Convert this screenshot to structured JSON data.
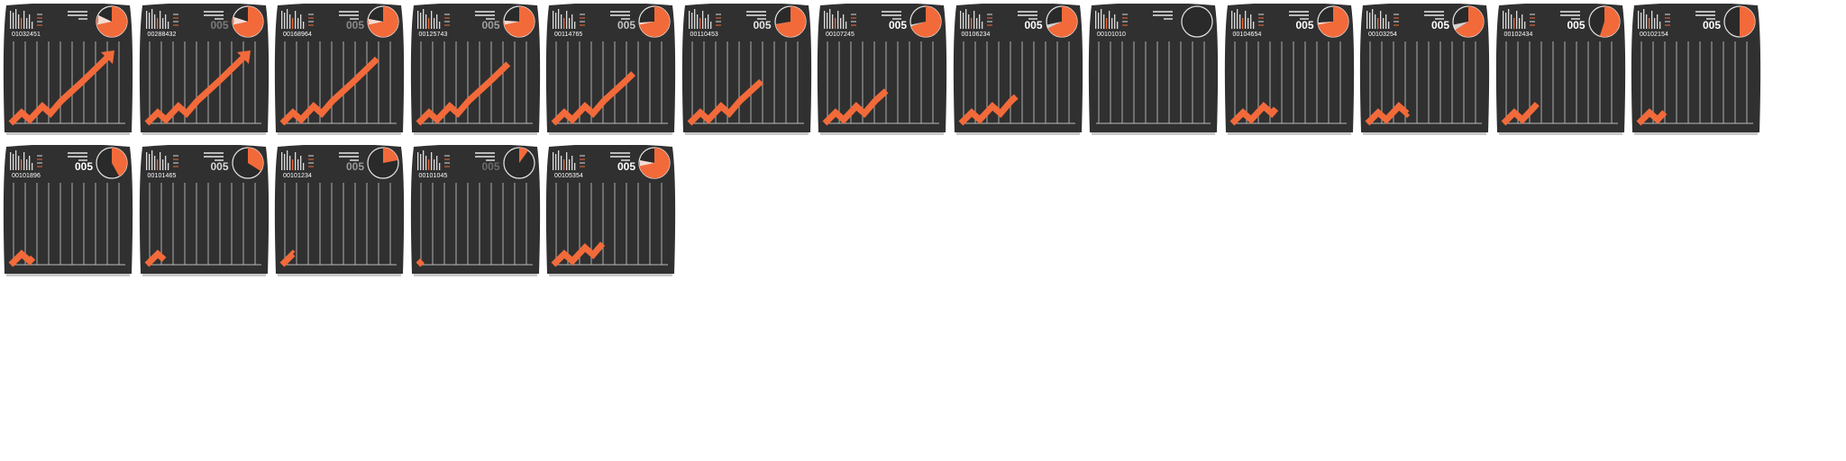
{
  "sheet": {
    "frames": [
      {
        "counter": "01032451",
        "badge": "",
        "badge_color": "#ffffff",
        "pie_fraction": 0.82,
        "trend_progress": 1.0
      },
      {
        "counter": "00288432",
        "badge": "005",
        "badge_color": "#7a7a7a",
        "pie_fraction": 0.8,
        "trend_progress": 1.0
      },
      {
        "counter": "00168964",
        "badge": "005",
        "badge_color": "#8a8a8a",
        "pie_fraction": 0.78,
        "trend_progress": 0.95
      },
      {
        "counter": "00125743",
        "badge": "005",
        "badge_color": "#a0a0a0",
        "pie_fraction": 0.76,
        "trend_progress": 0.9
      },
      {
        "counter": "00114765",
        "badge": "005",
        "badge_color": "#c4c4c4",
        "pie_fraction": 0.74,
        "trend_progress": 0.8
      },
      {
        "counter": "00110453",
        "badge": "005",
        "badge_color": "#e6e6e6",
        "pie_fraction": 0.72,
        "trend_progress": 0.72
      },
      {
        "counter": "00107245",
        "badge": "005",
        "badge_color": "#ffffff",
        "pie_fraction": 0.7,
        "trend_progress": 0.62
      },
      {
        "counter": "00106234",
        "badge": "005",
        "badge_color": "#ffffff",
        "pie_fraction": 0.68,
        "trend_progress": 0.56
      },
      {
        "counter": "00101010",
        "badge": "",
        "badge_color": "#ffffff",
        "pie_fraction": 0.0,
        "trend_progress": 0.0
      },
      {
        "counter": "00104654",
        "badge": "005",
        "badge_color": "#ffffff",
        "pie_fraction": 0.74,
        "trend_progress": 0.44
      },
      {
        "counter": "00103254",
        "badge": "005",
        "badge_color": "#ffffff",
        "pie_fraction": 0.66,
        "trend_progress": 0.4
      },
      {
        "counter": "00102434",
        "badge": "005",
        "badge_color": "#ffffff",
        "pie_fraction": 0.55,
        "trend_progress": 0.34
      },
      {
        "counter": "00102154",
        "badge": "005",
        "badge_color": "#ffffff",
        "pie_fraction": 0.5,
        "trend_progress": 0.26
      },
      {
        "counter": "00101896",
        "badge": "005",
        "badge_color": "#ffffff",
        "pie_fraction": 0.42,
        "trend_progress": 0.22
      },
      {
        "counter": "00101465",
        "badge": "005",
        "badge_color": "#d8d8d8",
        "pie_fraction": 0.34,
        "trend_progress": 0.17
      },
      {
        "counter": "00101234",
        "badge": "005",
        "badge_color": "#9a9a9a",
        "pie_fraction": 0.22,
        "trend_progress": 0.11
      },
      {
        "counter": "00101045",
        "badge": "005",
        "badge_color": "#6a6a6a",
        "pie_fraction": 0.1,
        "trend_progress": 0.04
      },
      {
        "counter": "00105354",
        "badge": "005",
        "badge_color": "#ffffff",
        "pie_fraction": 0.78,
        "trend_progress": 0.5
      }
    ],
    "colors": {
      "panel": "#303030",
      "shadow": "#c8c8c8",
      "accent": "#f26a3a",
      "grid": "#bdbdbd",
      "text": "#ffffff"
    },
    "icons": [
      "mini-bar-icon",
      "menu-lines-icon",
      "pie-gauge-icon",
      "trend-arrow-icon"
    ]
  }
}
